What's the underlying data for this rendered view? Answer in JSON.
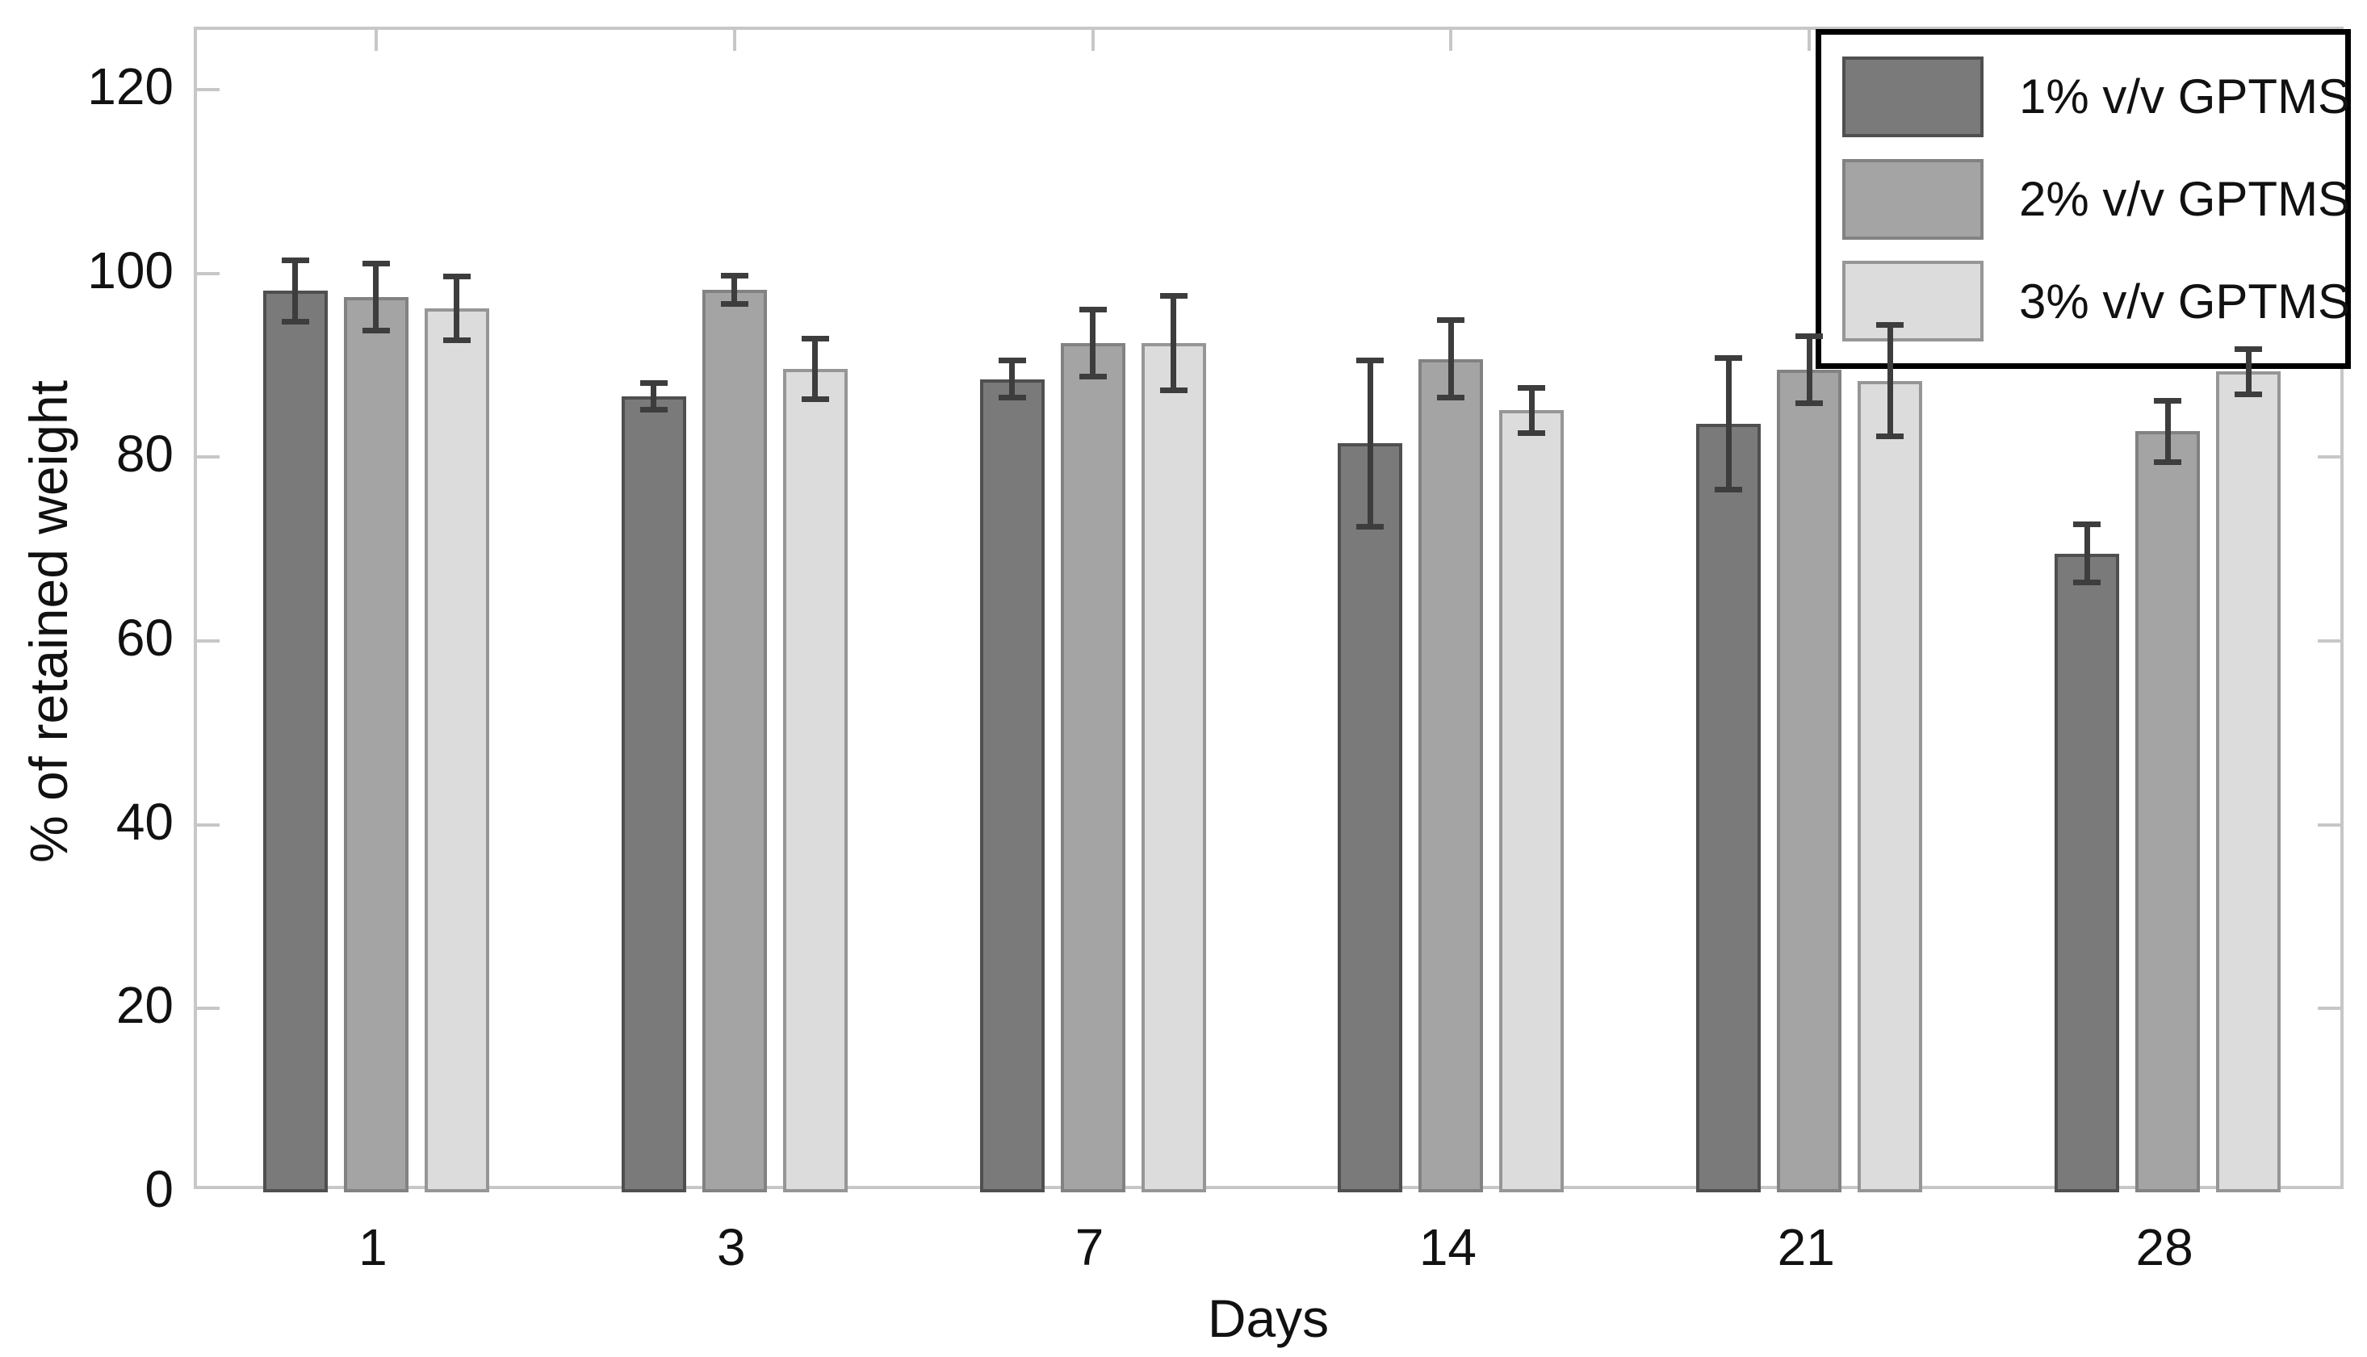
{
  "chart_data": {
    "type": "bar",
    "xlabel": "Days",
    "ylabel": "% of retained weight",
    "categories": [
      "1",
      "3",
      "7",
      "14",
      "21",
      "28"
    ],
    "series": [
      {
        "name": "1% v/v GPTMS",
        "fill": "#7a7a7a",
        "stroke": "#4f4f4f",
        "values": [
          98.1,
          86.6,
          88.5,
          81.5,
          83.6,
          69.5
        ],
        "errors": [
          3.4,
          1.5,
          2.1,
          9.1,
          7.2,
          3.2
        ]
      },
      {
        "name": "2% v/v GPTMS",
        "fill": "#a4a4a4",
        "stroke": "#828282",
        "values": [
          97.4,
          98.2,
          92.4,
          90.7,
          89.5,
          82.8
        ],
        "errors": [
          3.7,
          1.6,
          3.7,
          4.3,
          3.7,
          3.4
        ]
      },
      {
        "name": "3% v/v GPTMS",
        "fill": "#dcdcdc",
        "stroke": "#969696",
        "values": [
          96.2,
          89.6,
          92.4,
          85.1,
          88.3,
          89.3
        ],
        "errors": [
          3.5,
          3.3,
          5.2,
          2.5,
          6.1,
          2.5
        ]
      }
    ],
    "yticks": [
      0,
      20,
      40,
      60,
      80,
      100,
      120
    ],
    "ylim": [
      0,
      126.5
    ],
    "grid": false,
    "legend_position": "top-right",
    "error_bar_color": "#3d3d3d",
    "axis_color": "#c7c7c7",
    "text_color": "#111111"
  }
}
